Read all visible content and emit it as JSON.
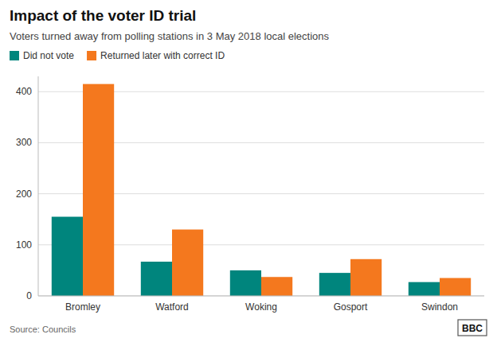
{
  "chart_data": {
    "type": "bar",
    "title": "Impact of the voter ID trial",
    "subtitle": "Voters turned away from polling stations in 3 May 2018 local elections",
    "categories": [
      "Bromley",
      "Watford",
      "Woking",
      "Gosport",
      "Swindon"
    ],
    "series": [
      {
        "name": "Did not vote",
        "color": "#00857d",
        "values": [
          155,
          67,
          50,
          45,
          27
        ]
      },
      {
        "name": "Returned later with correct ID",
        "color": "#f4781e",
        "values": [
          415,
          130,
          37,
          72,
          35
        ]
      }
    ],
    "ylim": [
      0,
      430
    ],
    "yticks": [
      0,
      100,
      200,
      300,
      400
    ],
    "grid": true,
    "legend": "upper left",
    "annotations": [
      "Source: Councils",
      "BBC"
    ]
  }
}
